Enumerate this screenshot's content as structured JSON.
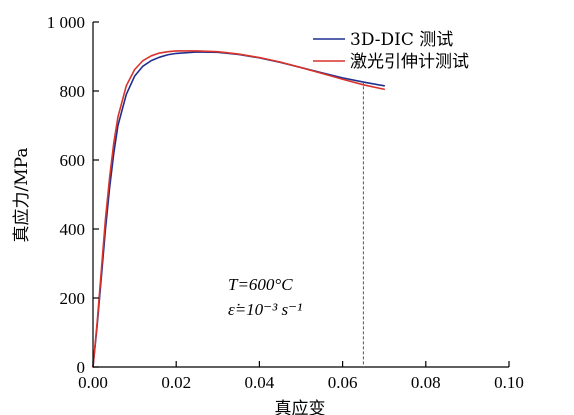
{
  "chart_data": {
    "type": "line",
    "xlabel": "真应变",
    "ylabel": "真应力/MPa",
    "xlim": [
      0,
      0.1
    ],
    "ylim": [
      0,
      1000
    ],
    "x_ticks": [
      "0.00",
      "0.02",
      "0.04",
      "0.06",
      "0.08",
      "0.10"
    ],
    "y_ticks": [
      "0",
      "200",
      "400",
      "600",
      "800",
      "1 000"
    ],
    "legend_position": "top-right",
    "reference_line_x": 0.065,
    "annotation": {
      "temperature": "T=600°C",
      "strain_rate": "ε̇=10⁻³ s⁻¹"
    },
    "series": [
      {
        "name": "3D-DIC 测试",
        "color": "#1f2f8f",
        "points": [
          [
            0,
            0
          ],
          [
            0.001,
            120
          ],
          [
            0.002,
            260
          ],
          [
            0.003,
            400
          ],
          [
            0.004,
            520
          ],
          [
            0.005,
            620
          ],
          [
            0.006,
            700
          ],
          [
            0.008,
            790
          ],
          [
            0.01,
            843
          ],
          [
            0.012,
            872
          ],
          [
            0.014,
            888
          ],
          [
            0.016,
            898
          ],
          [
            0.018,
            905
          ],
          [
            0.02,
            909
          ],
          [
            0.025,
            913
          ],
          [
            0.03,
            912
          ],
          [
            0.035,
            906
          ],
          [
            0.04,
            896
          ],
          [
            0.045,
            883
          ],
          [
            0.05,
            868
          ],
          [
            0.055,
            853
          ],
          [
            0.06,
            838
          ],
          [
            0.065,
            826
          ],
          [
            0.07,
            815
          ]
        ]
      },
      {
        "name": "激光引伸计测试",
        "color": "#d9342b",
        "points": [
          [
            0,
            0
          ],
          [
            0.001,
            130
          ],
          [
            0.002,
            280
          ],
          [
            0.003,
            430
          ],
          [
            0.004,
            550
          ],
          [
            0.005,
            650
          ],
          [
            0.006,
            725
          ],
          [
            0.008,
            815
          ],
          [
            0.01,
            862
          ],
          [
            0.012,
            888
          ],
          [
            0.014,
            902
          ],
          [
            0.016,
            910
          ],
          [
            0.018,
            914
          ],
          [
            0.02,
            916
          ],
          [
            0.025,
            916
          ],
          [
            0.03,
            914
          ],
          [
            0.035,
            907
          ],
          [
            0.04,
            897
          ],
          [
            0.045,
            884
          ],
          [
            0.05,
            868
          ],
          [
            0.055,
            851
          ],
          [
            0.06,
            834
          ],
          [
            0.065,
            818
          ],
          [
            0.07,
            805
          ]
        ]
      }
    ]
  }
}
